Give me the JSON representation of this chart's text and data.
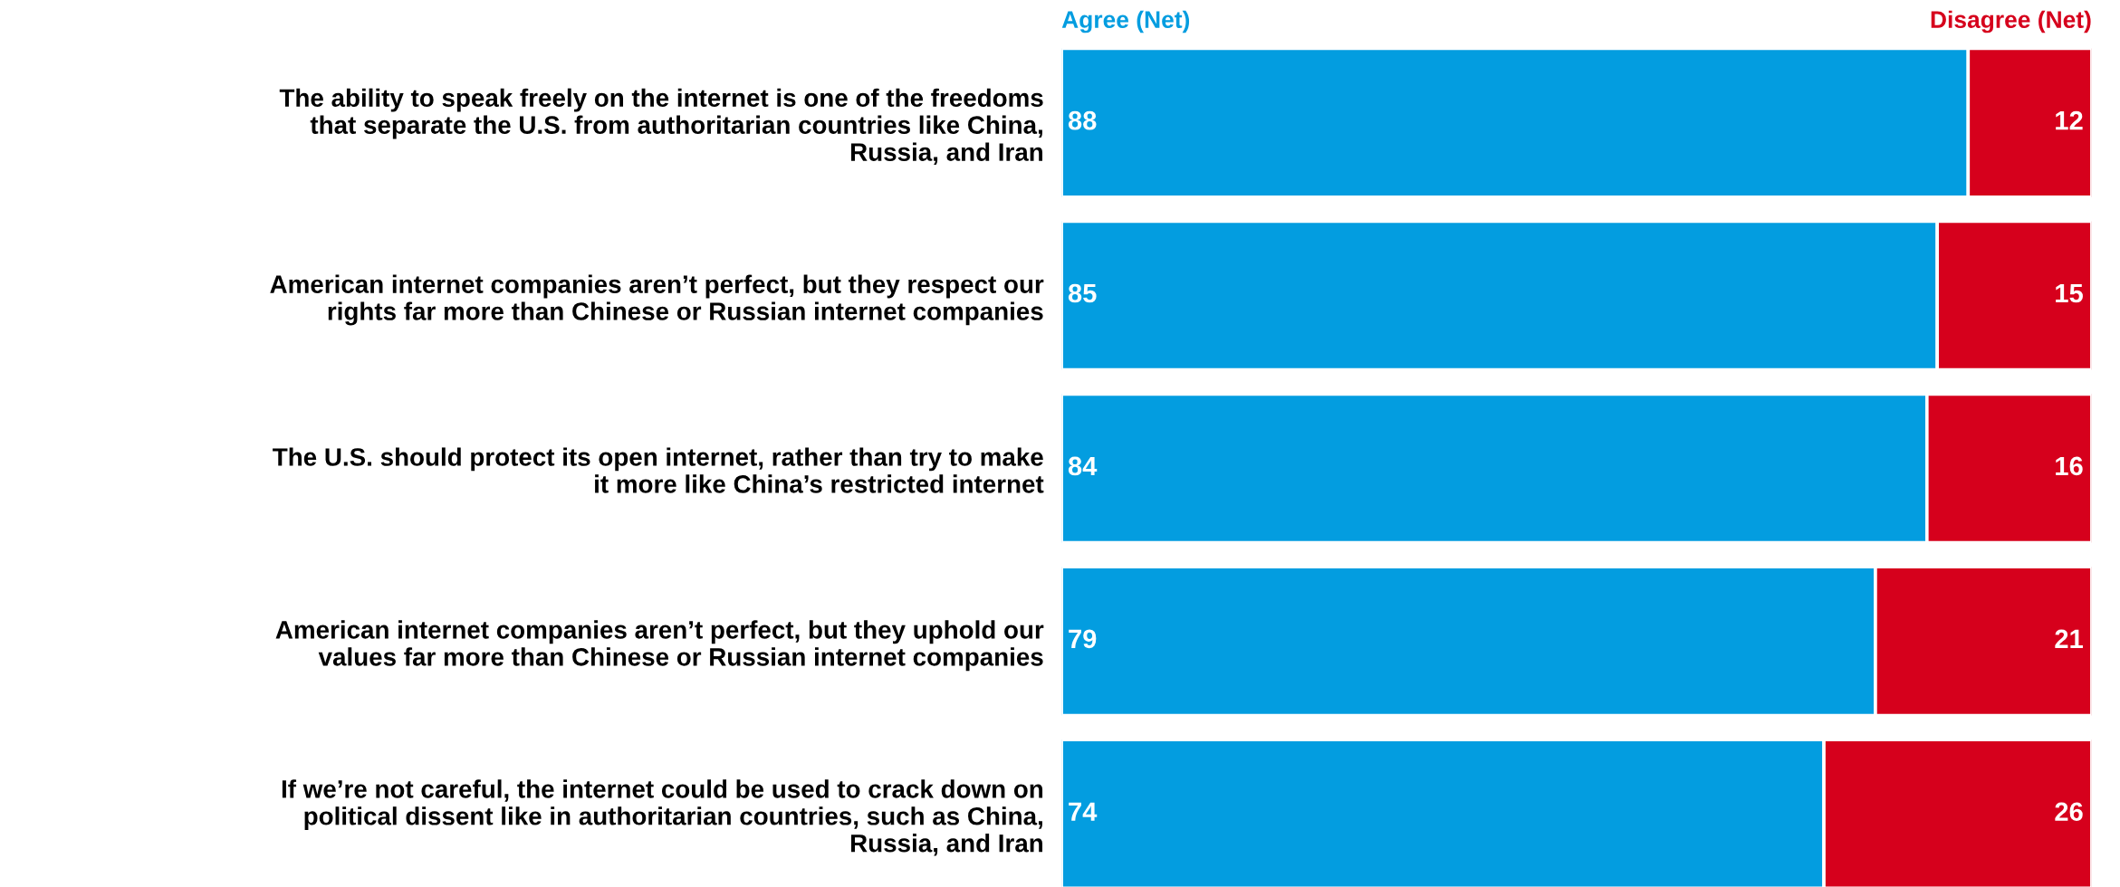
{
  "chart_data": {
    "type": "bar",
    "orientation": "horizontal",
    "stacked": true,
    "data_labels": true,
    "tick_labels": "y",
    "xlim": [
      0,
      100
    ],
    "categories": [
      "The ability to speak freely on the internet is one of the freedoms\nthat separate the U.S. from authoritarian countries like China,\nRussia, and Iran",
      "American internet companies aren’t perfect, but they respect our\nrights far more than Chinese or Russian internet companies",
      "The U.S. should protect its open internet, rather than try to make\nit more like China’s restricted internet",
      "American internet companies aren’t perfect, but they uphold our\nvalues far more than Chinese or Russian internet companies",
      "If we’re not careful, the internet could be used to crack down on\npolitical dissent like in authoritarian countries, such as China,\nRussia, and Iran"
    ],
    "series": [
      {
        "name": "Agree (Net)",
        "color": "#039de0",
        "values": [
          88,
          85,
          84,
          79,
          74
        ]
      },
      {
        "name": "Disagree (Net)",
        "color": "#d6001c",
        "values": [
          12,
          15,
          16,
          21,
          26
        ]
      }
    ]
  }
}
